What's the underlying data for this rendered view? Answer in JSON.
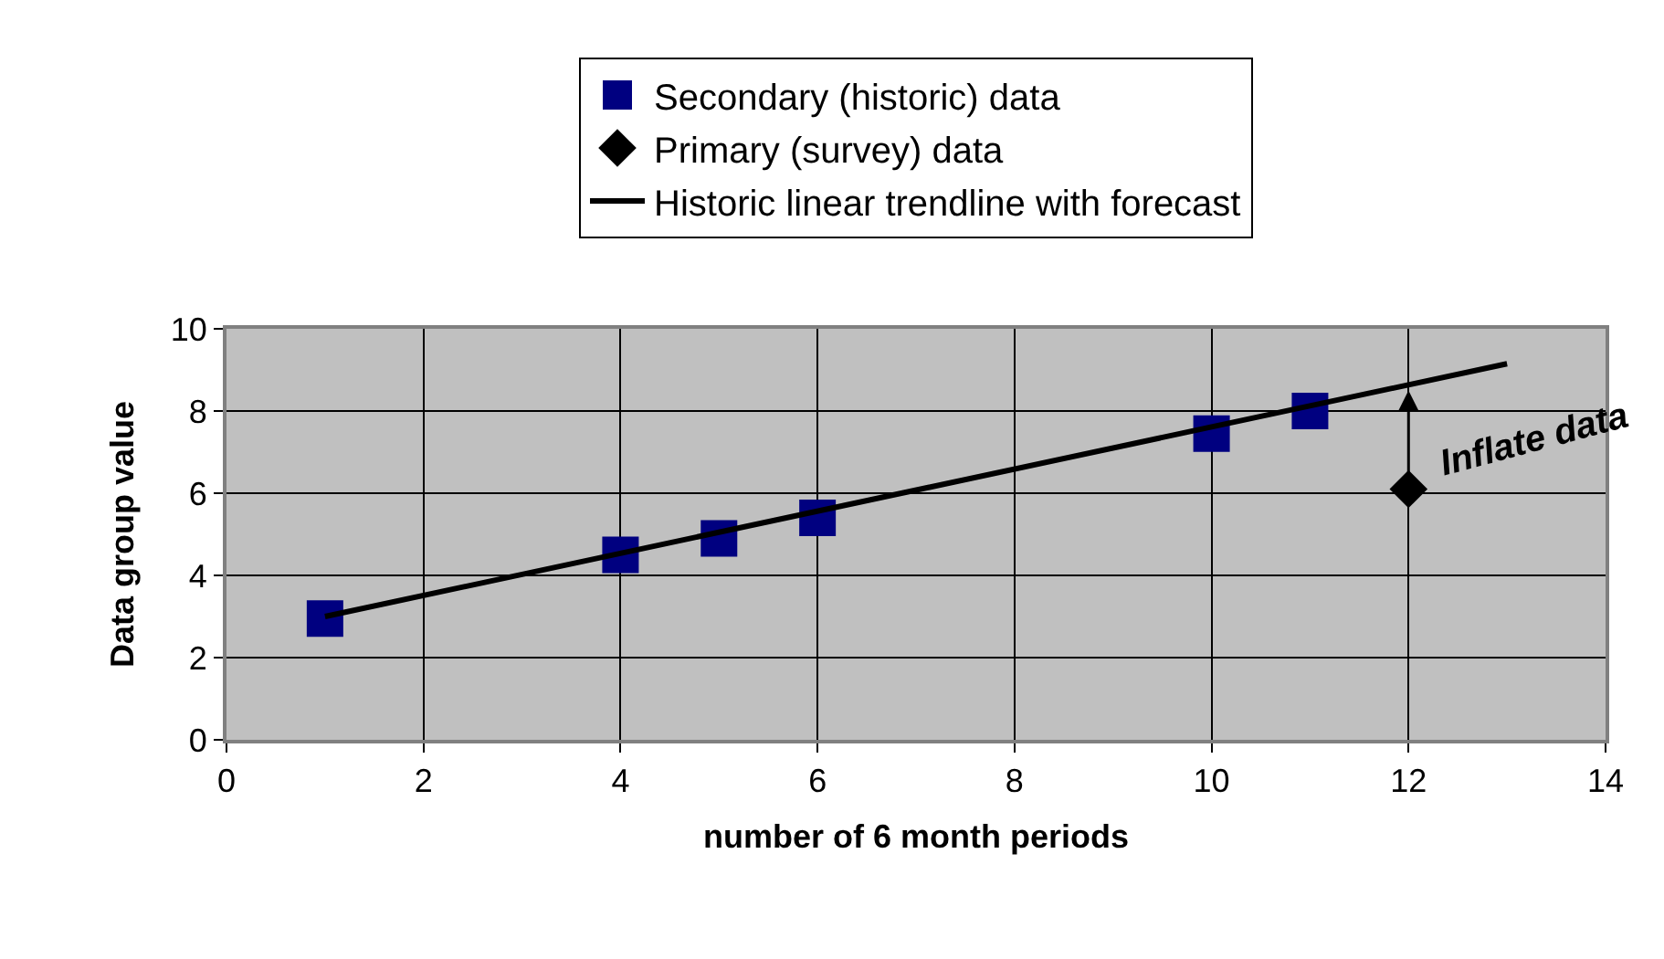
{
  "chart_data": {
    "type": "scatter",
    "xlabel": "number of 6 month periods",
    "ylabel": "Data group value",
    "xlim": [
      0,
      14
    ],
    "xticks": [
      0,
      2,
      4,
      6,
      8,
      10,
      12,
      14
    ],
    "ylim": [
      0,
      10
    ],
    "yticks": [
      0,
      2,
      4,
      6,
      8,
      10
    ],
    "grid": true,
    "legend": "top",
    "series": [
      {
        "name": "Secondary (historic) data",
        "color": "#000080",
        "marker": "square",
        "x": [
          1,
          4,
          5,
          6,
          10,
          11
        ],
        "values": [
          2.95,
          4.5,
          4.9,
          5.4,
          7.45,
          8.0
        ]
      },
      {
        "name": "Primary (survey) data",
        "color": "#000000",
        "marker": "diamond",
        "x": [
          12
        ],
        "values": [
          6.1
        ]
      },
      {
        "name": "Historic linear trendline with forecast",
        "type": "line",
        "color": "#000000",
        "marker": "none",
        "x": [
          1,
          13
        ],
        "values": [
          3.0,
          9.15
        ]
      }
    ],
    "annotations": [
      {
        "text": "Inflate data",
        "x": 12,
        "y": 8.5
      }
    ]
  }
}
